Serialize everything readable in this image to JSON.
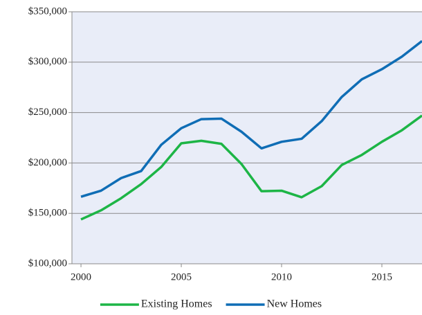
{
  "chart_data": {
    "type": "line",
    "x": [
      2000,
      2001,
      2002,
      2003,
      2004,
      2005,
      2006,
      2007,
      2008,
      2009,
      2010,
      2011,
      2012,
      2013,
      2014,
      2015,
      2016,
      2017
    ],
    "series": [
      {
        "name": "Existing Homes",
        "color": "#1db546",
        "values": [
          144000,
          153000,
          165000,
          179000,
          196000,
          219500,
          222000,
          219000,
          199000,
          172000,
          172500,
          166000,
          177000,
          198000,
          208000,
          221000,
          232500,
          247000
        ]
      },
      {
        "name": "New Homes",
        "color": "#0f6db5",
        "values": [
          166500,
          172500,
          185000,
          192000,
          218000,
          234500,
          243500,
          244000,
          231000,
          214500,
          221000,
          224000,
          241500,
          265500,
          283000,
          293000,
          305500,
          321000
        ]
      }
    ],
    "xlim": [
      1999.55,
      2017.0
    ],
    "xticks": [
      2000,
      2005,
      2010,
      2015
    ],
    "ylim": [
      100000,
      350000
    ],
    "yticks": [
      {
        "value": 100000,
        "label": "$100,000"
      },
      {
        "value": 150000,
        "label": "$150,000"
      },
      {
        "value": 200000,
        "label": "$200,000"
      },
      {
        "value": 250000,
        "label": "$250,000"
      },
      {
        "value": 300000,
        "label": "$300,000"
      },
      {
        "value": 350000,
        "label": "$350,000"
      }
    ],
    "grid": true,
    "legend": "bottom"
  }
}
